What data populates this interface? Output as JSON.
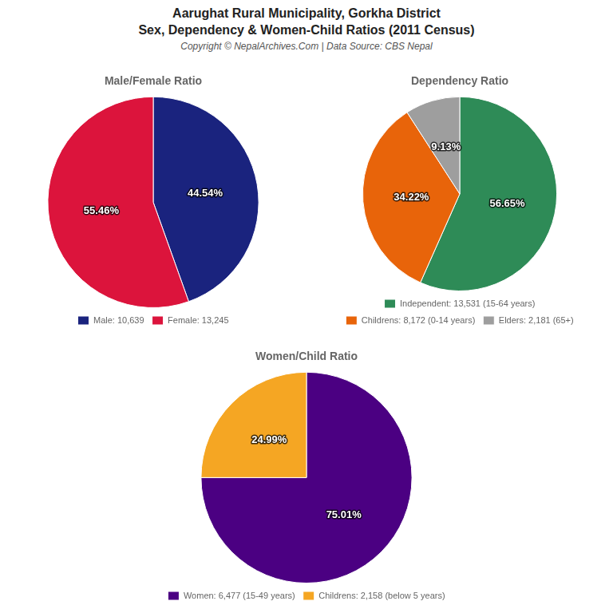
{
  "title": [
    "Aarughat Rural Municipality, Gorkha District",
    "Sex, Dependency & Women-Child Ratios (2011 Census)"
  ],
  "subtitle": "Copyright © NepalArchives.Com | Data Source: CBS Nepal",
  "chart_data": [
    {
      "type": "pie",
      "title": "Male/Female Ratio",
      "categories": [
        "Male: 10,639",
        "Female: 13,245"
      ],
      "values": [
        44.54,
        55.46
      ],
      "value_labels": [
        "44.54%",
        "55.46%"
      ],
      "colors": [
        "#1a237e",
        "#dc143c"
      ],
      "data_labels": true,
      "legend": "bottom"
    },
    {
      "type": "pie",
      "title": "Dependency Ratio",
      "categories": [
        "Independent: 13,531 (15-64 years)",
        "Childrens: 8,172 (0-14 years)",
        "Elders: 2,181 (65+)"
      ],
      "values": [
        56.65,
        34.22,
        9.13
      ],
      "value_labels": [
        "56.65%",
        "34.22%",
        "9.13%"
      ],
      "colors": [
        "#2e8b57",
        "#e8640a",
        "#9e9e9e"
      ],
      "data_labels": true,
      "legend": "bottom"
    },
    {
      "type": "pie",
      "title": "Women/Child Ratio",
      "categories": [
        "Women: 6,477 (15-49 years)",
        "Childrens: 2,158 (below 5 years)"
      ],
      "values": [
        75.01,
        24.99
      ],
      "value_labels": [
        "75.01%",
        "24.99%"
      ],
      "colors": [
        "#4b0082",
        "#f5a623"
      ],
      "data_labels": true,
      "legend": "bottom"
    }
  ]
}
